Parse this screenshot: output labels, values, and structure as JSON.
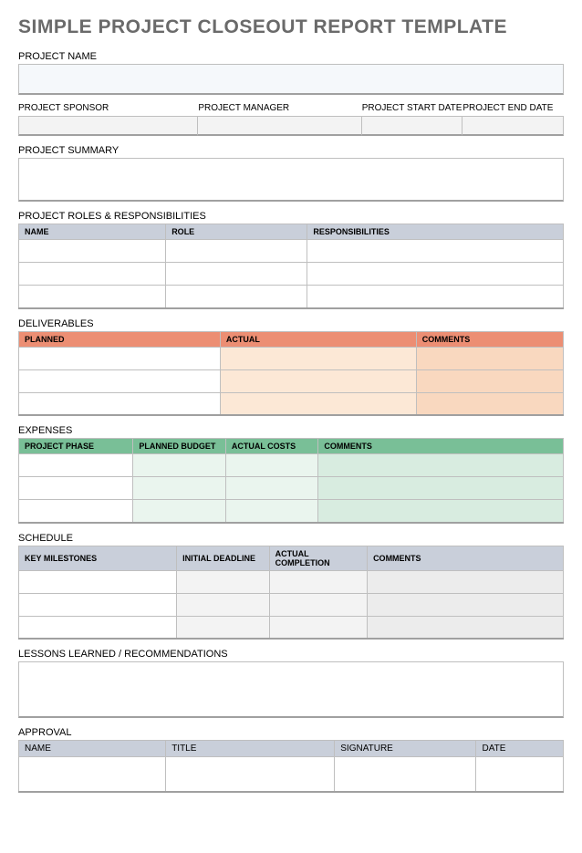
{
  "title": "SIMPLE PROJECT CLOSEOUT REPORT TEMPLATE",
  "projectName": {
    "label": "PROJECT NAME",
    "value": ""
  },
  "meta": {
    "cols": [
      {
        "label": "PROJECT SPONSOR",
        "value": ""
      },
      {
        "label": "PROJECT MANAGER",
        "value": ""
      },
      {
        "label": "PROJECT START DATE",
        "value": ""
      },
      {
        "label": "PROJECT END DATE",
        "value": ""
      }
    ],
    "colWidths": [
      "33%",
      "30%",
      "18.5%",
      "18.5%"
    ]
  },
  "summary": {
    "label": "PROJECT SUMMARY",
    "value": ""
  },
  "roles": {
    "label": "PROJECT ROLES & RESPONSIBILITIES",
    "headers": [
      "NAME",
      "ROLE",
      "RESPONSIBILITIES"
    ],
    "colWidths": [
      "27%",
      "26%",
      "47%"
    ],
    "rows": [
      [
        "",
        "",
        ""
      ],
      [
        "",
        "",
        ""
      ],
      [
        "",
        "",
        ""
      ]
    ],
    "header_bg": "#c9cfda"
  },
  "deliverables": {
    "label": "DELIVERABLES",
    "headers": [
      "PLANNED",
      "ACTUAL",
      "COMMENTS"
    ],
    "colWidths": [
      "37%",
      "36%",
      "27%"
    ],
    "rows": [
      [
        "",
        "",
        ""
      ],
      [
        "",
        "",
        ""
      ],
      [
        "",
        "",
        ""
      ]
    ],
    "header_bg": "#ec8e73",
    "col_bgs": [
      "#ffffff",
      "#fce8d6",
      "#f9d8bf"
    ]
  },
  "expenses": {
    "label": "EXPENSES",
    "headers": [
      "PROJECT PHASE",
      "PLANNED BUDGET",
      "ACTUAL COSTS",
      "COMMENTS"
    ],
    "colWidths": [
      "21%",
      "17%",
      "17%",
      "45%"
    ],
    "rows": [
      [
        "",
        "",
        "",
        ""
      ],
      [
        "",
        "",
        "",
        ""
      ],
      [
        "",
        "",
        "",
        ""
      ]
    ],
    "header_bg": "#79bf97",
    "col_bgs": [
      "#ffffff",
      "#eaf5ee",
      "#eaf5ee",
      "#d8ece0"
    ]
  },
  "schedule": {
    "label": "SCHEDULE",
    "headers": [
      "KEY MILESTONES",
      "INITIAL DEADLINE",
      "ACTUAL COMPLETION",
      "COMMENTS"
    ],
    "colWidths": [
      "29%",
      "17%",
      "18%",
      "36%"
    ],
    "rows": [
      [
        "",
        "",
        "",
        ""
      ],
      [
        "",
        "",
        "",
        ""
      ],
      [
        "",
        "",
        "",
        ""
      ]
    ],
    "header_bg": "#c9cfda",
    "col_bgs": [
      "#ffffff",
      "#f3f3f3",
      "#f3f3f3",
      "#ececec"
    ]
  },
  "lessons": {
    "label": "LESSONS LEARNED / RECOMMENDATIONS",
    "value": ""
  },
  "approval": {
    "label": "APPROVAL",
    "headers": [
      "NAME",
      "TITLE",
      "SIGNATURE",
      "DATE"
    ],
    "colWidths": [
      "27%",
      "31%",
      "26%",
      "16%"
    ],
    "rows": [
      [
        "",
        "",
        "",
        ""
      ]
    ],
    "header_bg": "#c9cfda"
  },
  "colors": {
    "title_text": "#6a6a6a",
    "border": "#bfbfbf",
    "border_bottom": "#a0a0a0",
    "input_bg": "#f5f8fb",
    "meta_bg": "#f3f3f3"
  }
}
